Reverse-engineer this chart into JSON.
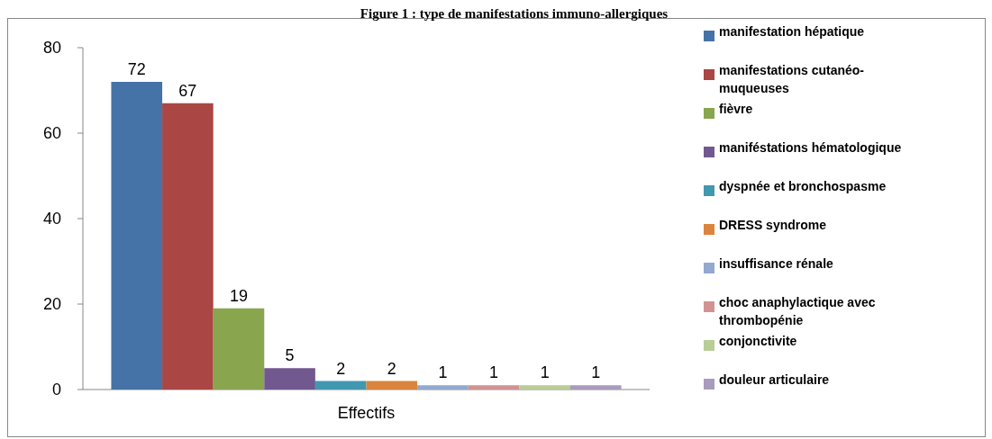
{
  "chart_data": {
    "type": "bar",
    "title": "Figure 1 : type de manifestations immuno-allergiques",
    "categories": [
      "Effectifs"
    ],
    "series": [
      {
        "name": "manifestation hépatique",
        "color": "#4572a7",
        "values": [
          72
        ]
      },
      {
        "name": "manifestations cutanéo-muqueuses",
        "color": "#aa4643",
        "values": [
          67
        ]
      },
      {
        "name": "fièvre",
        "color": "#89a54e",
        "values": [
          19
        ]
      },
      {
        "name": "maniféstations hématologique",
        "color": "#71588f",
        "values": [
          5
        ]
      },
      {
        "name": "dyspnée et bronchospasme",
        "color": "#4198af",
        "values": [
          2
        ]
      },
      {
        "name": "DRESS syndrome",
        "color": "#db843d",
        "values": [
          2
        ]
      },
      {
        "name": "insuffisance rénale",
        "color": "#93a9cf",
        "values": [
          1
        ]
      },
      {
        "name": "choc anaphylactique avec thrombopénie",
        "color": "#d19392",
        "values": [
          1
        ]
      },
      {
        "name": "conjonctivite",
        "color": "#b9cd96",
        "values": [
          1
        ]
      },
      {
        "name": "douleur articulaire",
        "color": "#a99bbd",
        "values": [
          1
        ]
      }
    ],
    "ylim": [
      0,
      80
    ],
    "yticks": [
      0,
      20,
      40,
      60,
      80
    ],
    "data_labels": true,
    "legend": "right"
  }
}
